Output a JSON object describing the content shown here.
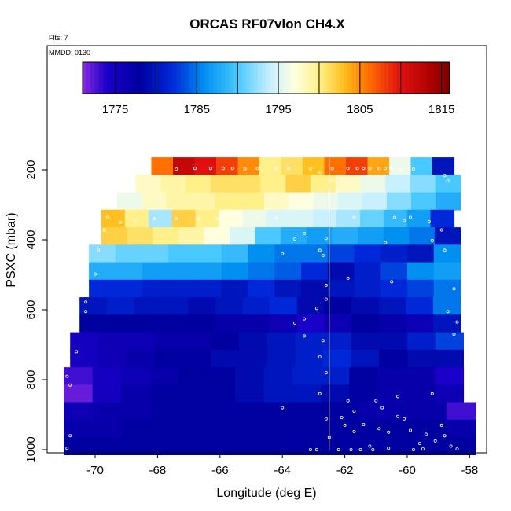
{
  "chart_data": {
    "type": "heatmap",
    "title": "ORCAS RF07vlon CH4.X",
    "flts_label": "Flts: 7",
    "mmdd_label": "MMDD: 0130",
    "xlabel": "Longitude (deg E)",
    "ylabel": "PSXC (mbar)",
    "xlim": [
      -71.0,
      -57.7
    ],
    "ylim": [
      1000,
      120
    ],
    "x_ticks": [
      -70,
      -68,
      -66,
      -64,
      -62,
      -60,
      -58
    ],
    "y_ticks": [
      200,
      400,
      600,
      800,
      1000
    ],
    "colorbar": {
      "range": [
        1771,
        1816
      ],
      "ticks": [
        1775,
        1785,
        1795,
        1805,
        1815
      ],
      "stops": [
        {
          "v": 1771,
          "c": "#8a2be2"
        },
        {
          "v": 1774,
          "c": "#1a00c8"
        },
        {
          "v": 1778,
          "c": "#0000a0"
        },
        {
          "v": 1782,
          "c": "#0028d8"
        },
        {
          "v": 1786,
          "c": "#0090f0"
        },
        {
          "v": 1790,
          "c": "#48c8ff"
        },
        {
          "v": 1794,
          "c": "#c8f0ff"
        },
        {
          "v": 1797,
          "c": "#ffffe0"
        },
        {
          "v": 1800,
          "c": "#fff08a"
        },
        {
          "v": 1803,
          "c": "#ffc020"
        },
        {
          "v": 1806,
          "c": "#ff7000"
        },
        {
          "v": 1810,
          "c": "#e01010"
        },
        {
          "v": 1814,
          "c": "#a80000"
        },
        {
          "v": 1816,
          "c": "#780000"
        }
      ]
    },
    "reference_line": {
      "x": -62.5
    },
    "rows": [
      {
        "p": 190,
        "x0": -68.2,
        "x1": -58.5,
        "v": [
          1806,
          1812,
          1810,
          1808,
          1805,
          1800,
          1801,
          1803,
          1806,
          1808,
          1804,
          1796,
          1790,
          1780
        ]
      },
      {
        "p": 240,
        "x0": -68.7,
        "x1": -58.3,
        "v": [
          1798,
          1799,
          1800,
          1801,
          1801,
          1800,
          1802,
          1800,
          1798,
          1796,
          1794,
          1792,
          1790
        ]
      },
      {
        "p": 290,
        "x0": -69.3,
        "x1": -58.3,
        "v": [
          1796,
          1798,
          1799,
          1799,
          1800,
          1800,
          1798,
          1797,
          1796,
          1795,
          1794,
          1792,
          1790,
          1788
        ]
      },
      {
        "p": 340,
        "x0": -69.8,
        "x1": -58.5,
        "v": [
          1803,
          1800,
          1793,
          1802,
          1800,
          1797,
          1796,
          1795,
          1795,
          1794,
          1793,
          1791,
          1789,
          1787,
          1782
        ]
      },
      {
        "p": 390,
        "x0": -69.8,
        "x1": -58.3,
        "v": [
          1802,
          1801,
          1800,
          1799,
          1797,
          1795,
          1790,
          1788,
          1787,
          1788,
          1787,
          1786,
          1785,
          1780
        ]
      },
      {
        "p": 440,
        "x0": -70.2,
        "x1": -58.3,
        "v": [
          1792,
          1791,
          1791,
          1790,
          1790,
          1789,
          1786,
          1785,
          1785,
          1783,
          1782,
          1781,
          1780,
          1786
        ]
      },
      {
        "p": 490,
        "x0": -70.2,
        "x1": -58.3,
        "v": [
          1788,
          1788,
          1787,
          1787,
          1787,
          1786,
          1785,
          1784,
          1782,
          1779,
          1781,
          1783,
          1786,
          1787
        ]
      },
      {
        "p": 540,
        "x0": -70.2,
        "x1": -58.3,
        "v": [
          1782,
          1782,
          1781,
          1781,
          1781,
          1780,
          1782,
          1780,
          1779,
          1780,
          1781,
          1782,
          1783,
          1785
        ]
      },
      {
        "p": 590,
        "x0": -70.5,
        "x1": -58.3,
        "v": [
          1780,
          1781,
          1780,
          1780,
          1779,
          1780,
          1781,
          1782,
          1779,
          1778,
          1779,
          1780,
          1782,
          1785
        ]
      },
      {
        "p": 640,
        "x0": -70.5,
        "x1": -58.3,
        "v": [
          1778,
          1778,
          1778,
          1778,
          1778,
          1777,
          1777,
          1776,
          1774,
          1776,
          1778,
          1777,
          1776,
          1780
        ]
      },
      {
        "p": 690,
        "x0": -70.8,
        "x1": -58.2,
        "v": [
          1775,
          1776,
          1776,
          1777,
          1777,
          1778,
          1779,
          1780,
          1781,
          1781,
          1779,
          1779,
          1781,
          1783
        ]
      },
      {
        "p": 740,
        "x0": -70.8,
        "x1": -58.2,
        "v": [
          1775,
          1776,
          1777,
          1778,
          1778,
          1779,
          1779,
          1780,
          1781,
          1782,
          1780,
          1778,
          1779,
          1779
        ]
      },
      {
        "p": 790,
        "x0": -71.0,
        "x1": -58.2,
        "v": [
          1773,
          1775,
          1776,
          1777,
          1778,
          1778,
          1779,
          1780,
          1781,
          1781,
          1778,
          1777,
          1777,
          1774
        ]
      },
      {
        "p": 840,
        "x0": -71.0,
        "x1": -58.2,
        "v": [
          1772,
          1775,
          1777,
          1778,
          1778,
          1778,
          1779,
          1780,
          1780,
          1779,
          1778,
          1777,
          1777,
          1776
        ]
      },
      {
        "p": 890,
        "x0": -71.0,
        "x1": -57.8,
        "v": [
          1776,
          1777,
          1777,
          1778,
          1778,
          1778,
          1778,
          1778,
          1778,
          1778,
          1777,
          1777,
          1777,
          1773
        ]
      },
      {
        "p": 940,
        "x0": -71.0,
        "x1": -57.8,
        "v": [
          1777,
          1777,
          1778,
          1778,
          1778,
          1778,
          1778,
          1778,
          1778,
          1778,
          1778,
          1778,
          1778,
          1777
        ]
      },
      {
        "p": 990,
        "x0": -71.0,
        "x1": -57.8,
        "v": [
          1778,
          1778,
          1778,
          1778,
          1778,
          1778,
          1778,
          1778,
          1778,
          1778,
          1778,
          1778,
          1778,
          1778
        ]
      }
    ],
    "points": [
      [
        -67.4,
        198
      ],
      [
        -66.8,
        196
      ],
      [
        -66.3,
        196
      ],
      [
        -65.9,
        196
      ],
      [
        -65.6,
        196
      ],
      [
        -65.2,
        197
      ],
      [
        -64.8,
        196
      ],
      [
        -64.2,
        196
      ],
      [
        -63.8,
        196
      ],
      [
        -63.1,
        196
      ],
      [
        -62.4,
        196
      ],
      [
        -61.9,
        196
      ],
      [
        -61.6,
        196
      ],
      [
        -61.4,
        196
      ],
      [
        -61.2,
        196
      ],
      [
        -60.9,
        196
      ],
      [
        -60.7,
        196
      ],
      [
        -60.5,
        196
      ],
      [
        -60.2,
        198
      ],
      [
        -59.8,
        198
      ],
      [
        -62.8,
        206
      ],
      [
        -58.8,
        216
      ],
      [
        -58.7,
        232
      ],
      [
        -62.4,
        230
      ],
      [
        -64.2,
        338
      ],
      [
        -64.8,
        338
      ],
      [
        -65.3,
        340
      ],
      [
        -66.1,
        340
      ],
      [
        -66.7,
        340
      ],
      [
        -67.4,
        340
      ],
      [
        -68.1,
        340
      ],
      [
        -68.7,
        345
      ],
      [
        -69.2,
        350
      ],
      [
        -69.6,
        336
      ],
      [
        -61.7,
        336
      ],
      [
        -60.4,
        336
      ],
      [
        -59.9,
        336
      ],
      [
        -60.1,
        345
      ],
      [
        -59.3,
        348
      ],
      [
        -58.9,
        372
      ],
      [
        -69.7,
        372
      ],
      [
        -63.3,
        382
      ],
      [
        -62.6,
        396
      ],
      [
        -63.6,
        398
      ],
      [
        -59.2,
        402
      ],
      [
        -60.7,
        408
      ],
      [
        -69.9,
        428
      ],
      [
        -62.8,
        430
      ],
      [
        -62.7,
        445
      ],
      [
        -64.0,
        440
      ],
      [
        -58.8,
        430
      ],
      [
        -70.0,
        498
      ],
      [
        -70.3,
        515
      ],
      [
        -60.5,
        520
      ],
      [
        -58.5,
        540
      ],
      [
        -62.6,
        530
      ],
      [
        -61.9,
        510
      ],
      [
        -70.3,
        578
      ],
      [
        -70.3,
        605
      ],
      [
        -62.6,
        570
      ],
      [
        -62.9,
        596
      ],
      [
        -63.3,
        626
      ],
      [
        -63.6,
        638
      ],
      [
        -58.7,
        605
      ],
      [
        -58.4,
        635
      ],
      [
        -63.3,
        675
      ],
      [
        -62.7,
        688
      ],
      [
        -58.5,
        670
      ],
      [
        -70.6,
        720
      ],
      [
        -62.8,
        735
      ],
      [
        -62.6,
        780
      ],
      [
        -62.8,
        840
      ],
      [
        -70.9,
        790
      ],
      [
        -70.8,
        815
      ],
      [
        -59.2,
        840
      ],
      [
        -60.3,
        848
      ],
      [
        -61.0,
        860
      ],
      [
        -61.9,
        860
      ],
      [
        -60.8,
        880
      ],
      [
        -61.7,
        890
      ],
      [
        -62.1,
        908
      ],
      [
        -60.1,
        912
      ],
      [
        -58.9,
        930
      ],
      [
        -60.6,
        950
      ],
      [
        -61.7,
        948
      ],
      [
        -62.5,
        965
      ],
      [
        -59.6,
        982
      ],
      [
        -61.1,
        1000
      ],
      [
        -61.5,
        1000
      ],
      [
        -61.8,
        1000
      ],
      [
        -62.2,
        1000
      ],
      [
        -62.9,
        1000
      ],
      [
        -63.1,
        1000
      ],
      [
        -59.8,
        1000
      ],
      [
        -59.5,
        998
      ],
      [
        -60.6,
        996
      ],
      [
        -61.2,
        990
      ],
      [
        -58.4,
        998
      ],
      [
        -58.6,
        990
      ],
      [
        -59.1,
        975
      ],
      [
        -59.9,
        945
      ],
      [
        -60.3,
        905
      ],
      [
        -70.8,
        960
      ],
      [
        -70.9,
        996
      ],
      [
        -64.0,
        880
      ],
      [
        -62.0,
        930
      ],
      [
        -62.6,
        912
      ],
      [
        -61.4,
        928
      ],
      [
        -60.9,
        940
      ],
      [
        -59.4,
        956
      ],
      [
        -58.8,
        960
      ]
    ]
  }
}
